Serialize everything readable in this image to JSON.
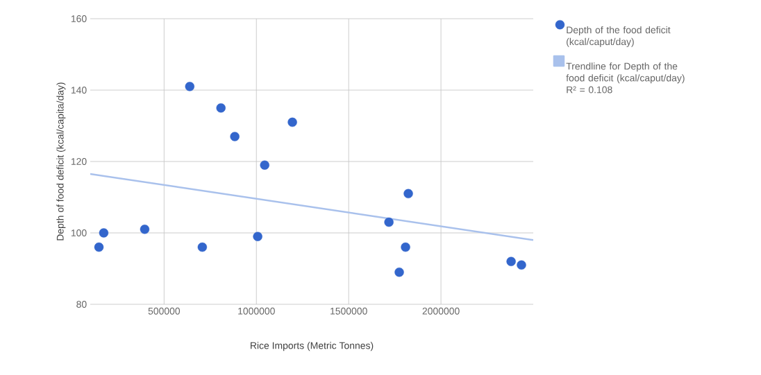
{
  "chart_data": {
    "type": "scatter",
    "xlabel": "Rice Imports (Metric Tonnes)",
    "ylabel": "Depth of food deficit (kcal/capita/day)",
    "xlim": [
      100000,
      2500000
    ],
    "ylim": [
      80,
      160
    ],
    "xticks": [
      500000,
      1000000,
      1500000,
      2000000
    ],
    "yticks": [
      80,
      100,
      120,
      140,
      160
    ],
    "grid": true,
    "legend": "top right",
    "series": [
      {
        "name": "Depth of the food deficit (kcal/caput/day)",
        "marker": "circle",
        "color": "#3366cc",
        "x": [
          147000,
          173000,
          395000,
          639000,
          707000,
          808000,
          883000,
          1007000,
          1045000,
          1195000,
          1718000,
          1774000,
          1808000,
          1823000,
          2380000,
          2436000
        ],
        "values": [
          96,
          100,
          101,
          141,
          96,
          135,
          127,
          99,
          119,
          131,
          103,
          89,
          96,
          111,
          92,
          91
        ]
      },
      {
        "name": "Trendline for Depth of the food deficit (kcal/caput/day) R² = 0.108",
        "type": "line",
        "marker": "none",
        "color": "#a9c1ec",
        "x": [
          100000,
          2500000
        ],
        "values": [
          116.5,
          98
        ]
      }
    ]
  }
}
